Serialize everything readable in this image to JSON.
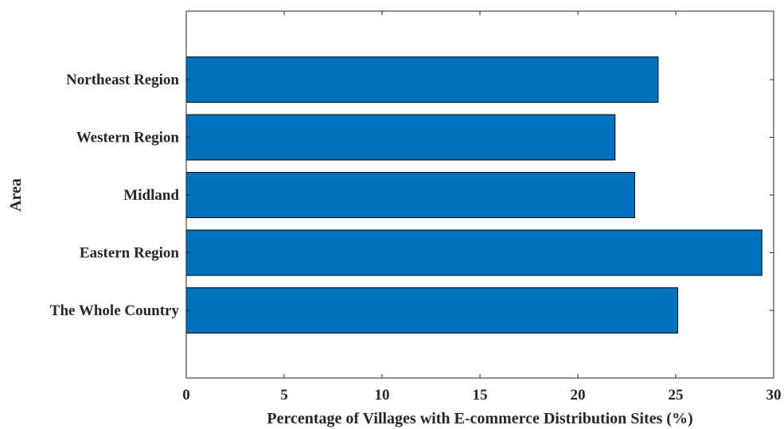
{
  "chart_data": {
    "type": "bar",
    "orientation": "horizontal",
    "title": "",
    "xlabel": "Percentage of Villages with E-commerce Distribution Sites (%)",
    "ylabel": "Area",
    "categories": [
      "The Whole Country",
      "Eastern Region",
      "Midland",
      "Western Region",
      "Northeast Region"
    ],
    "values": [
      25.1,
      29.4,
      22.9,
      21.9,
      24.1
    ],
    "xlim": [
      0,
      30
    ],
    "xticks": [
      0,
      5,
      10,
      15,
      20,
      25,
      30
    ],
    "xtick_labels": [
      "0",
      "5",
      "10",
      "15",
      "20",
      "25",
      "30"
    ],
    "grid": false,
    "legend": "none",
    "bar_color": "#0072BD",
    "bar_edge_color": "#000000",
    "axis_color": "#262626"
  }
}
